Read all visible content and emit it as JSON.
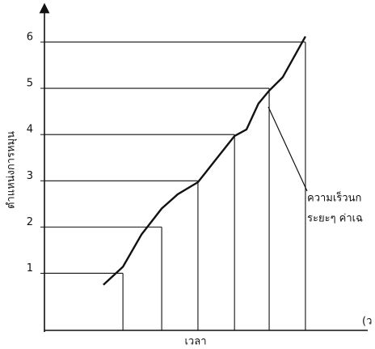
{
  "chart_data": {
    "type": "line",
    "y_label": "ตำแหน่งการหมุน",
    "x_label": "เวลา",
    "x_unit_label": "(ว",
    "annotation": [
      "ความเร็วนก",
      "ระยะๆ ค่าเฉ"
    ],
    "xlim": [
      0,
      100
    ],
    "ylim": [
      -0.2,
      6.7
    ],
    "yticks": [
      1,
      2,
      3,
      4,
      5,
      6
    ],
    "series": [
      {
        "color": "#111111",
        "x": [
          18.7,
          24.9,
          30.8,
          37.2,
          42.3,
          48.7,
          53.8,
          60.3,
          64.1,
          67.9,
          71.3,
          75.6,
          82.8
        ],
        "values": [
          0.75,
          1.14,
          1.84,
          2.4,
          2.71,
          2.97,
          3.41,
          3.97,
          4.11,
          4.67,
          4.95,
          5.24,
          6.12
        ]
      }
    ],
    "reference_lines": {
      "y": [
        1,
        2,
        3,
        4,
        5,
        6
      ],
      "x": [
        24.9,
        37.2,
        48.7,
        60.3,
        71.3,
        82.8
      ]
    }
  }
}
